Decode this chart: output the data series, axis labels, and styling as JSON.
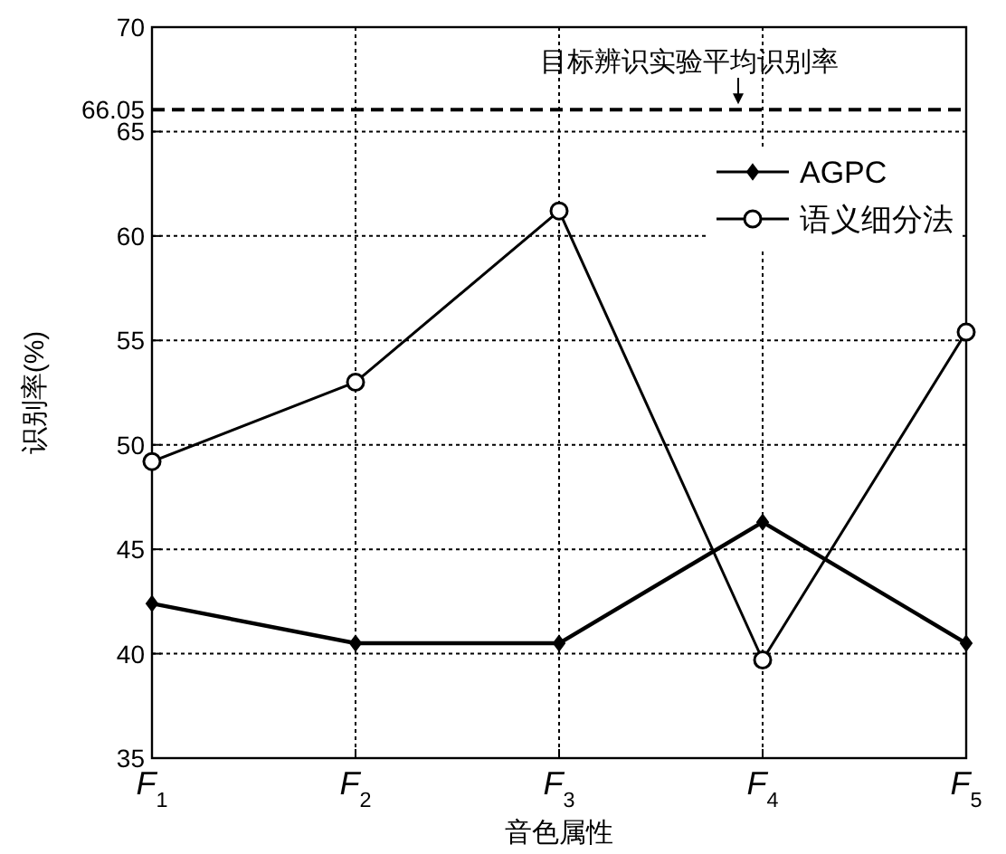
{
  "chart_data": {
    "type": "line",
    "xlabel": "音色属性",
    "ylabel": "识别率(%)",
    "categories": [
      "F$_{1}$",
      "F$_{2}$",
      "F$_{3}$",
      "F$_{4}$",
      "F$_{5}$"
    ],
    "ylim": [
      35,
      70
    ],
    "yticks": [
      35,
      40,
      45,
      50,
      55,
      60,
      65,
      66.05,
      70
    ],
    "grid": true,
    "legend": "top right",
    "series": [
      {
        "name": "AGPC",
        "color": "#000000",
        "marker": "diamond",
        "values": [
          42.4,
          40.5,
          40.5,
          46.3,
          40.5
        ]
      },
      {
        "name": "语义细分法",
        "color": "#000000",
        "marker": "circle",
        "values": [
          49.2,
          53,
          61.2,
          39.7,
          55.4
        ]
      }
    ],
    "ref_lines": [
      {
        "axis": "y",
        "value": 66.05,
        "label": "目标辨识实验平均识别率",
        "line_style": "dashed",
        "color": "#000000"
      }
    ]
  }
}
